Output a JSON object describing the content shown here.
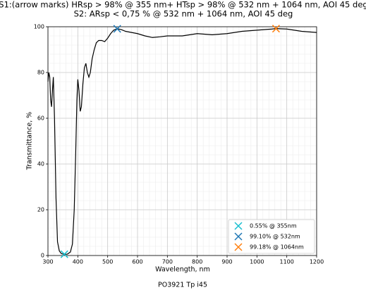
{
  "chart_data": {
    "type": "line",
    "title": "S1:(arrow marks) HRsp > 98% @ 355 nm+ HTsp > 98% @ 532 nm + 1064 nm, AOI 45 deg",
    "subtitle": "S2: ARsp < 0,75 % @ 532 nm + 1064 nm, AOI 45 deg",
    "xlabel": "Wavelength, nm",
    "ylabel": "Transmittance, %",
    "caption": "PO3921 Tp i45",
    "xlim": [
      300,
      1200
    ],
    "xticks": [
      300,
      400,
      500,
      600,
      700,
      800,
      900,
      1000,
      1100,
      1200
    ],
    "ylim": [
      0,
      100
    ],
    "yticks": [
      0,
      20,
      40,
      60,
      80,
      100
    ],
    "grid": true,
    "legend": "lower right",
    "series": [
      {
        "color": "#000000",
        "x": [
          300,
          303,
          306,
          309,
          312,
          315,
          318,
          322,
          327,
          332,
          338,
          345,
          355,
          365,
          375,
          382,
          388,
          393,
          397,
          400,
          404,
          408,
          412,
          417,
          422,
          427,
          432,
          437,
          442,
          448,
          455,
          462,
          470,
          480,
          490,
          500,
          510,
          520,
          532,
          545,
          560,
          580,
          600,
          625,
          650,
          675,
          700,
          750,
          800,
          850,
          900,
          950,
          1000,
          1050,
          1064,
          1100,
          1150,
          1200
        ],
        "values": [
          76,
          80,
          78,
          68,
          65,
          72,
          78,
          60,
          25,
          6,
          2,
          0.8,
          0.5,
          0.6,
          1.5,
          5,
          20,
          45,
          68,
          77,
          72,
          63,
          65,
          75,
          82,
          84,
          80,
          78,
          80,
          86,
          90,
          93,
          94,
          94,
          93.5,
          95,
          97,
          98.5,
          99.1,
          98.8,
          98,
          97.5,
          97,
          96,
          95.3,
          95.6,
          96,
          96,
          97,
          96.5,
          97,
          98,
          98.5,
          99,
          99.2,
          99,
          98,
          97.5
        ]
      }
    ],
    "markers": [
      {
        "name": "0.55% @ 355nm",
        "color": "#17becf",
        "x": 355,
        "value": 0.55
      },
      {
        "name": "99.10% @ 532nm",
        "color": "#1f77b4",
        "x": 532,
        "value": 99.1
      },
      {
        "name": "99.18% @ 1064nm",
        "color": "#ff7f0e",
        "x": 1064,
        "value": 99.18
      }
    ]
  }
}
